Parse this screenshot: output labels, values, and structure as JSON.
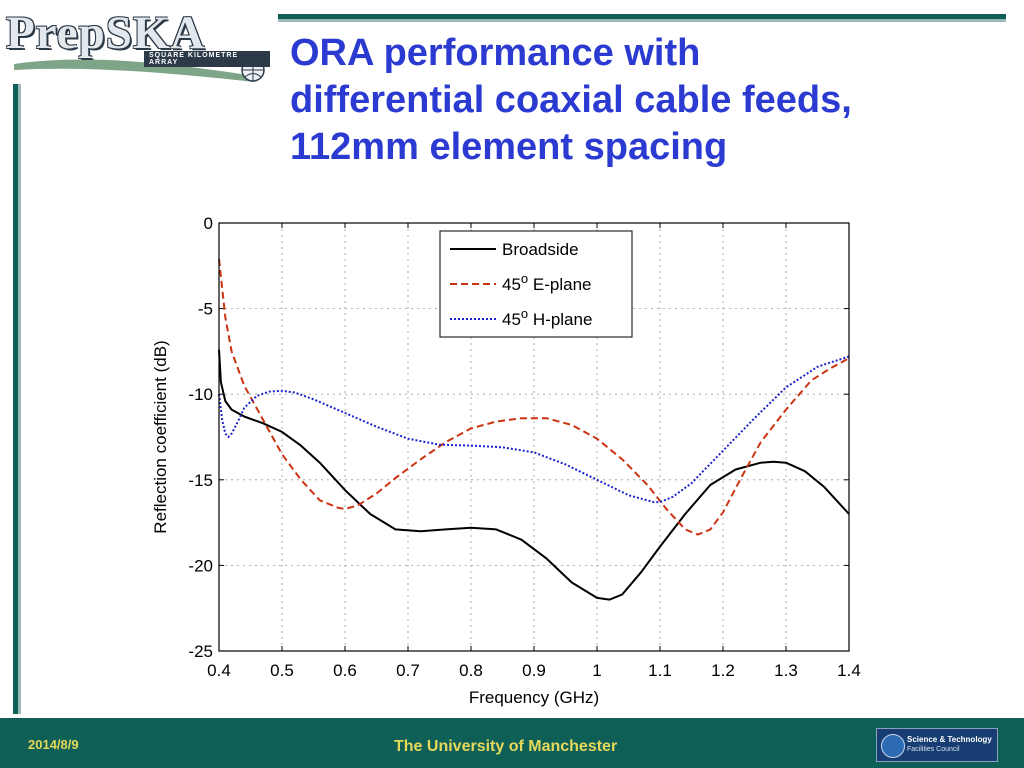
{
  "logo": {
    "wordmark": "PrepSKA",
    "tagline": "SQUARE KILOMETRE ARRAY"
  },
  "title": {
    "lines": [
      "ORA performance with",
      "differential coaxial cable feeds,",
      "112mm element spacing"
    ]
  },
  "footer": {
    "date": "2014/8/9",
    "center": "The University of Manchester",
    "partner_line1": "Science & Technology",
    "partner_line2": "Facilities Council"
  },
  "colors": {
    "title": "#2b3bd1",
    "footer_bg": "#0e5f56",
    "footer_text": "#e6d85a",
    "broadside": "#000000",
    "e_plane": "#cc3311",
    "h_plane": "#1a22cc"
  },
  "chart_data": {
    "type": "line",
    "title": "",
    "xlabel": "Frequency (GHz)",
    "ylabel": "Reflection coefficient (dB)",
    "xlim": [
      0.4,
      1.4
    ],
    "ylim": [
      -25,
      0
    ],
    "xticks": [
      "0.4",
      "0.5",
      "0.6",
      "0.7",
      "0.8",
      "0.9",
      "1",
      "1.1",
      "1.2",
      "1.3",
      "1.4"
    ],
    "yticks": [
      "0",
      "-5",
      "-10",
      "-15",
      "-20",
      "-25"
    ],
    "grid": true,
    "legend_position": "top-center",
    "series": [
      {
        "name": "Broadside",
        "style": "solid",
        "color": "#000000",
        "x": [
          0.4,
          0.403,
          0.41,
          0.42,
          0.44,
          0.47,
          0.5,
          0.53,
          0.56,
          0.6,
          0.64,
          0.68,
          0.72,
          0.76,
          0.8,
          0.84,
          0.88,
          0.92,
          0.96,
          1.0,
          1.02,
          1.04,
          1.07,
          1.1,
          1.14,
          1.18,
          1.22,
          1.26,
          1.28,
          1.3,
          1.33,
          1.36,
          1.4
        ],
        "y": [
          -7.4,
          -9.3,
          -10.4,
          -10.9,
          -11.3,
          -11.7,
          -12.2,
          -13.0,
          -14.0,
          -15.6,
          -17.0,
          -17.9,
          -18.0,
          -17.9,
          -17.8,
          -17.9,
          -18.5,
          -19.6,
          -21.0,
          -21.9,
          -22.0,
          -21.7,
          -20.4,
          -18.9,
          -17.0,
          -15.3,
          -14.4,
          -14.0,
          -13.95,
          -14.0,
          -14.5,
          -15.4,
          -17.0
        ]
      },
      {
        "name": "45o E-plane",
        "style": "dashed",
        "color": "#cc3311",
        "x": [
          0.4,
          0.41,
          0.42,
          0.44,
          0.47,
          0.5,
          0.53,
          0.56,
          0.59,
          0.6,
          0.62,
          0.65,
          0.68,
          0.72,
          0.76,
          0.8,
          0.84,
          0.88,
          0.92,
          0.96,
          1.0,
          1.04,
          1.08,
          1.11,
          1.14,
          1.16,
          1.18,
          1.2,
          1.23,
          1.26,
          1.3,
          1.34,
          1.37,
          1.4
        ],
        "y": [
          -2.1,
          -5.5,
          -7.5,
          -9.5,
          -11.5,
          -13.5,
          -15.0,
          -16.2,
          -16.65,
          -16.7,
          -16.5,
          -15.8,
          -14.9,
          -13.8,
          -12.8,
          -12.0,
          -11.6,
          -11.4,
          -11.4,
          -11.8,
          -12.6,
          -13.8,
          -15.3,
          -16.7,
          -17.9,
          -18.2,
          -17.9,
          -16.9,
          -14.8,
          -12.8,
          -10.9,
          -9.2,
          -8.5,
          -7.9
        ]
      },
      {
        "name": "45o H-plane",
        "style": "dotted",
        "color": "#1a22cc",
        "x": [
          0.4,
          0.405,
          0.41,
          0.415,
          0.42,
          0.43,
          0.44,
          0.46,
          0.48,
          0.5,
          0.52,
          0.55,
          0.6,
          0.65,
          0.7,
          0.75,
          0.8,
          0.85,
          0.9,
          0.95,
          1.0,
          1.05,
          1.09,
          1.1,
          1.12,
          1.15,
          1.2,
          1.25,
          1.3,
          1.35,
          1.4
        ],
        "y": [
          -10.0,
          -11.5,
          -12.3,
          -12.5,
          -12.3,
          -11.6,
          -10.8,
          -10.1,
          -9.85,
          -9.8,
          -9.9,
          -10.3,
          -11.1,
          -11.9,
          -12.6,
          -12.95,
          -13.0,
          -13.1,
          -13.4,
          -14.1,
          -15.0,
          -15.9,
          -16.3,
          -16.3,
          -16.0,
          -15.2,
          -13.3,
          -11.4,
          -9.6,
          -8.4,
          -7.8
        ]
      }
    ]
  }
}
